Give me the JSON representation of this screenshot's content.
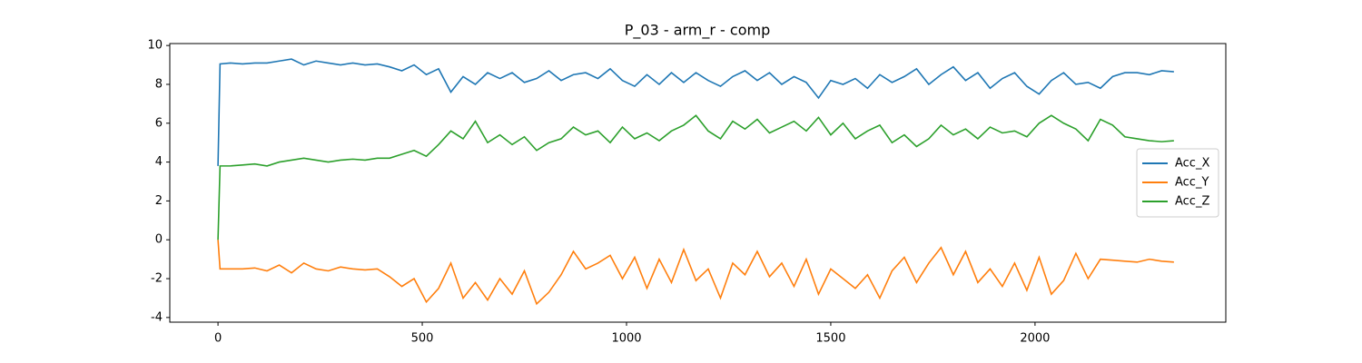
{
  "chart_data": {
    "type": "line",
    "title": "P_03 - arm_r - comp",
    "x": [
      0,
      5,
      30,
      60,
      90,
      120,
      150,
      180,
      210,
      240,
      270,
      300,
      330,
      360,
      390,
      420,
      450,
      480,
      510,
      540,
      570,
      600,
      630,
      660,
      690,
      720,
      750,
      780,
      810,
      840,
      870,
      900,
      930,
      960,
      990,
      1020,
      1050,
      1080,
      1110,
      1140,
      1170,
      1200,
      1230,
      1260,
      1290,
      1320,
      1350,
      1380,
      1410,
      1440,
      1470,
      1500,
      1530,
      1560,
      1590,
      1620,
      1650,
      1680,
      1710,
      1740,
      1770,
      1800,
      1830,
      1860,
      1890,
      1920,
      1950,
      1980,
      2010,
      2040,
      2070,
      2100,
      2130,
      2160,
      2190,
      2220,
      2250,
      2280,
      2310,
      2340
    ],
    "series": [
      {
        "name": "Acc_X",
        "color": "#1f77b4",
        "values": [
          3.8,
          9.05,
          9.1,
          9.05,
          9.1,
          9.1,
          9.2,
          9.3,
          9.0,
          9.2,
          9.1,
          9.0,
          9.1,
          9.0,
          9.05,
          8.9,
          8.7,
          9.0,
          8.5,
          8.8,
          7.6,
          8.4,
          8.0,
          8.6,
          8.3,
          8.6,
          8.1,
          8.3,
          8.7,
          8.2,
          8.5,
          8.6,
          8.3,
          8.8,
          8.2,
          7.9,
          8.5,
          8.0,
          8.6,
          8.1,
          8.6,
          8.2,
          7.9,
          8.4,
          8.7,
          8.2,
          8.6,
          8.0,
          8.4,
          8.1,
          7.3,
          8.2,
          8.0,
          8.3,
          7.8,
          8.5,
          8.1,
          8.4,
          8.8,
          8.0,
          8.5,
          8.9,
          8.2,
          8.6,
          7.8,
          8.3,
          8.6,
          7.9,
          7.5,
          8.2,
          8.6,
          8.0,
          8.1,
          7.8,
          8.4,
          8.6,
          8.6,
          8.5,
          8.7,
          8.65
        ]
      },
      {
        "name": "Acc_Y",
        "color": "#ff7f0e",
        "values": [
          0,
          -1.5,
          -1.5,
          -1.5,
          -1.45,
          -1.6,
          -1.3,
          -1.7,
          -1.2,
          -1.5,
          -1.6,
          -1.4,
          -1.5,
          -1.55,
          -1.5,
          -1.9,
          -2.4,
          -2.0,
          -3.2,
          -2.5,
          -1.2,
          -3.0,
          -2.2,
          -3.1,
          -2.0,
          -2.8,
          -1.6,
          -3.3,
          -2.7,
          -1.8,
          -0.6,
          -1.5,
          -1.2,
          -0.8,
          -2.0,
          -0.9,
          -2.5,
          -1.0,
          -2.2,
          -0.5,
          -2.1,
          -1.5,
          -3.0,
          -1.2,
          -1.8,
          -0.6,
          -1.9,
          -1.2,
          -2.4,
          -1.0,
          -2.8,
          -1.5,
          -2.0,
          -2.5,
          -1.8,
          -3.0,
          -1.6,
          -0.9,
          -2.2,
          -1.2,
          -0.4,
          -1.8,
          -0.6,
          -2.2,
          -1.5,
          -2.4,
          -1.2,
          -2.6,
          -0.9,
          -2.8,
          -2.1,
          -0.7,
          -2.0,
          -1.0,
          -1.05,
          -1.1,
          -1.15,
          -1.0,
          -1.1,
          -1.15
        ]
      },
      {
        "name": "Acc_Z",
        "color": "#2ca02c",
        "values": [
          0,
          3.8,
          3.8,
          3.85,
          3.9,
          3.8,
          4.0,
          4.1,
          4.2,
          4.1,
          4.0,
          4.1,
          4.15,
          4.1,
          4.2,
          4.2,
          4.4,
          4.6,
          4.3,
          4.9,
          5.6,
          5.2,
          6.1,
          5.0,
          5.4,
          4.9,
          5.3,
          4.6,
          5.0,
          5.2,
          5.8,
          5.4,
          5.6,
          5.0,
          5.8,
          5.2,
          5.5,
          5.1,
          5.6,
          5.9,
          6.4,
          5.6,
          5.2,
          6.1,
          5.7,
          6.2,
          5.5,
          5.8,
          6.1,
          5.6,
          6.3,
          5.4,
          6.0,
          5.2,
          5.6,
          5.9,
          5.0,
          5.4,
          4.8,
          5.2,
          5.9,
          5.4,
          5.7,
          5.2,
          5.8,
          5.5,
          5.6,
          5.3,
          6.0,
          6.4,
          6.0,
          5.7,
          5.1,
          6.2,
          5.9,
          5.3,
          5.2,
          5.1,
          5.05,
          5.1
        ]
      }
    ],
    "xlim": [
      -118,
      2467
    ],
    "ylim": [
      -4.24,
      10.1
    ],
    "xticks": [
      0,
      500,
      1000,
      1500,
      2000
    ],
    "yticks": [
      -4,
      -2,
      0,
      2,
      4,
      6,
      8,
      10
    ],
    "legend": "center right"
  }
}
